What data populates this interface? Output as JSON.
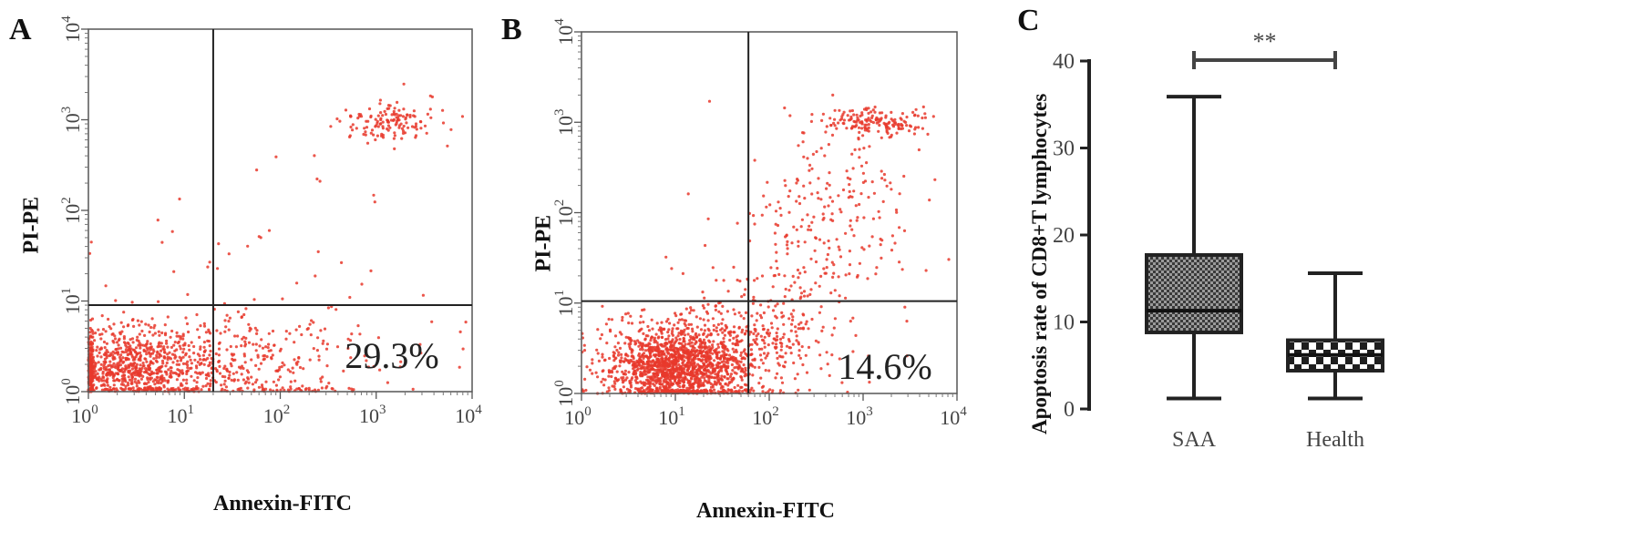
{
  "panels": {
    "a": {
      "letter": "A"
    },
    "b": {
      "letter": "B"
    },
    "c": {
      "letter": "C"
    }
  },
  "chart_data": [
    {
      "type": "scatter",
      "panel": "A",
      "xlabel": "Annexin-FITC",
      "ylabel": "PI-PE",
      "x_scale": "log",
      "y_scale": "log",
      "xlim": [
        1,
        10000
      ],
      "ylim": [
        1,
        10000
      ],
      "x_ticks": [
        {
          "base": "10",
          "exp": "0"
        },
        {
          "base": "10",
          "exp": "1"
        },
        {
          "base": "10",
          "exp": "2"
        },
        {
          "base": "10",
          "exp": "3"
        },
        {
          "base": "10",
          "exp": "4"
        }
      ],
      "y_ticks": [
        {
          "base": "10",
          "exp": "0"
        },
        {
          "base": "10",
          "exp": "1"
        },
        {
          "base": "10",
          "exp": "2"
        },
        {
          "base": "10",
          "exp": "3"
        },
        {
          "base": "10",
          "exp": "4"
        }
      ],
      "gate_x": 20,
      "gate_y": 9,
      "annotation": "29.3%",
      "point_color": "#e8382b",
      "populations": [
        {
          "center": [
            2.5,
            1.8
          ],
          "spread": [
            0.45,
            0.2
          ],
          "count": 700
        },
        {
          "center": [
            18,
            2.2
          ],
          "spread": [
            0.9,
            0.3
          ],
          "count": 520
        },
        {
          "center": [
            1300,
            950
          ],
          "spread": [
            0.25,
            0.12
          ],
          "count": 140
        },
        {
          "center": [
            40,
            10
          ],
          "spread": [
            1.0,
            1.0
          ],
          "count": 60
        }
      ]
    },
    {
      "type": "scatter",
      "panel": "B",
      "xlabel": "Annexin-FITC",
      "ylabel": "PI-PE",
      "x_scale": "log",
      "y_scale": "log",
      "xlim": [
        1,
        10000
      ],
      "ylim": [
        1,
        10000
      ],
      "x_ticks": [
        {
          "base": "10",
          "exp": "0"
        },
        {
          "base": "10",
          "exp": "1"
        },
        {
          "base": "10",
          "exp": "2"
        },
        {
          "base": "10",
          "exp": "3"
        },
        {
          "base": "10",
          "exp": "4"
        }
      ],
      "y_ticks": [
        {
          "base": "10",
          "exp": "0"
        },
        {
          "base": "10",
          "exp": "1"
        },
        {
          "base": "10",
          "exp": "2"
        },
        {
          "base": "10",
          "exp": "3"
        },
        {
          "base": "10",
          "exp": "4"
        }
      ],
      "gate_x": 60,
      "gate_y": 10.5,
      "annotation": "14.6%",
      "point_color": "#e8382b",
      "populations": [
        {
          "center": [
            11,
            2.0
          ],
          "spread": [
            0.38,
            0.22
          ],
          "count": 1500
        },
        {
          "center": [
            40,
            3.5
          ],
          "spread": [
            0.5,
            0.3
          ],
          "count": 350
        },
        {
          "center": [
            1400,
            1000
          ],
          "spread": [
            0.28,
            0.08
          ],
          "count": 160
        },
        {
          "center": [
            500,
            100
          ],
          "spread": [
            0.45,
            0.55
          ],
          "count": 200
        },
        {
          "center": [
            150,
            15
          ],
          "spread": [
            0.5,
            0.5
          ],
          "count": 120
        }
      ]
    },
    {
      "type": "box",
      "panel": "C",
      "ylabel": "Apoptosis rate of CD8+T lymphocytes",
      "categories": [
        "SAA",
        "Health"
      ],
      "ylim": [
        0,
        40
      ],
      "y_ticks": [
        0,
        10,
        20,
        30,
        40
      ],
      "boxes": [
        {
          "name": "SAA",
          "min": 1.2,
          "q1": 8.8,
          "median": 11.3,
          "q3": 17.7,
          "max": 35.9,
          "fill": "checker-fine"
        },
        {
          "name": "Health",
          "min": 1.2,
          "q1": 4.4,
          "median": 6.2,
          "q3": 7.9,
          "max": 15.6,
          "fill": "checker-coarse"
        }
      ],
      "significance": {
        "between": [
          "SAA",
          "Health"
        ],
        "y": 40,
        "label": "**"
      }
    }
  ]
}
